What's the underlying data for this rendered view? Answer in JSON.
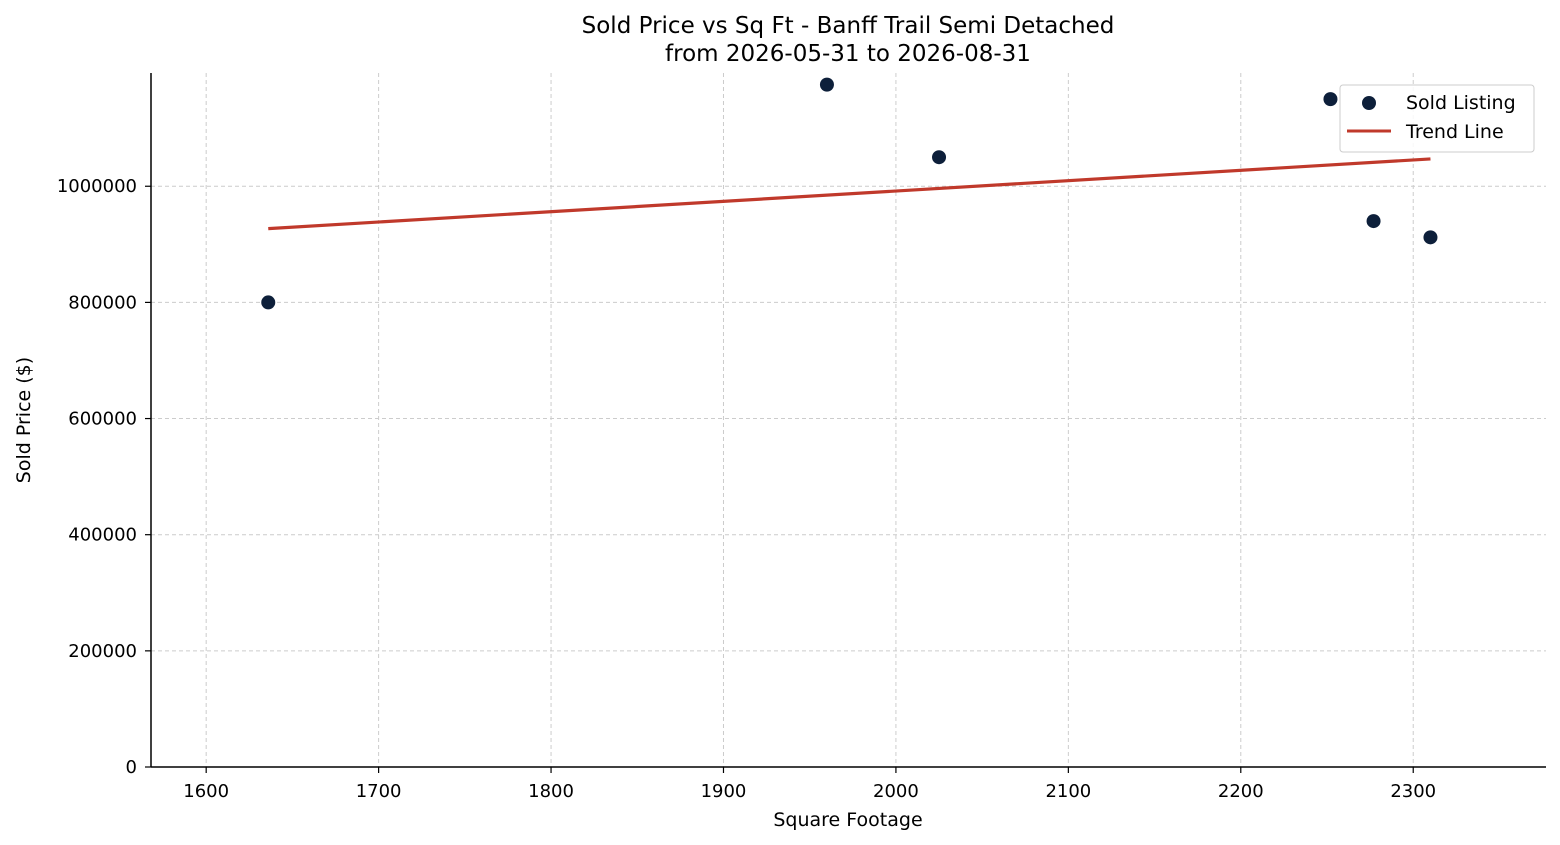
{
  "chart_data": {
    "type": "scatter",
    "title_line1": "Sold Price vs Sq Ft - Banff Trail Semi Detached",
    "title_line2": "from 2026-05-31 to 2026-08-31",
    "xlabel": "Square Footage",
    "ylabel": "Sold Price ($)",
    "xlim": [
      1568,
      2377
    ],
    "ylim": [
      0,
      1195000
    ],
    "xticks": [
      1600,
      1700,
      1800,
      1900,
      2000,
      2100,
      2200,
      2300
    ],
    "yticks": [
      0,
      200000,
      400000,
      600000,
      800000,
      1000000
    ],
    "grid": true,
    "legend_position": "top-right",
    "series": [
      {
        "name": "Sold Listing",
        "kind": "scatter",
        "color": "#0d1f3a",
        "points": [
          {
            "x": 1636,
            "y": 800000
          },
          {
            "x": 1960,
            "y": 1175000
          },
          {
            "x": 2025,
            "y": 1050000
          },
          {
            "x": 2252,
            "y": 1150000
          },
          {
            "x": 2277,
            "y": 940000
          },
          {
            "x": 2310,
            "y": 912000
          }
        ]
      },
      {
        "name": "Trend Line",
        "kind": "line",
        "color": "#c0392b",
        "points": [
          {
            "x": 1636,
            "y": 927000
          },
          {
            "x": 2310,
            "y": 1047000
          }
        ]
      }
    ]
  }
}
